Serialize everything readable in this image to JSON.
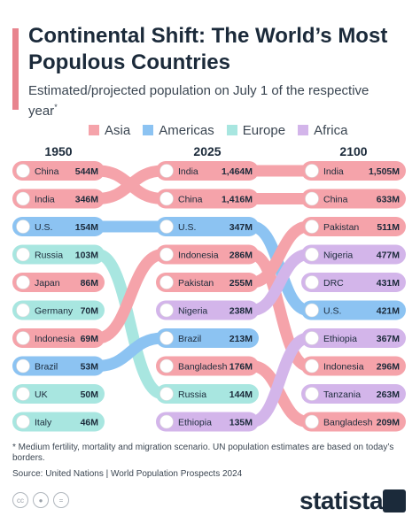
{
  "header": {
    "title": "Continental Shift: The World’s Most Populous Countries",
    "subtitle": "Estimated/projected population on July 1 of the respective year",
    "subtitle_mark": "*"
  },
  "legend": [
    {
      "label": "Asia",
      "color": "#f5a3aa"
    },
    {
      "label": "Americas",
      "color": "#8cc3f2"
    },
    {
      "label": "Europe",
      "color": "#a8e6e0"
    },
    {
      "label": "Africa",
      "color": "#d3b5ea"
    }
  ],
  "chart_data": {
    "type": "bump",
    "years": [
      "1950",
      "2025",
      "2100"
    ],
    "unit": "M",
    "columns": [
      [
        {
          "country": "China",
          "value": "544M",
          "region": "Asia"
        },
        {
          "country": "India",
          "value": "346M",
          "region": "Asia"
        },
        {
          "country": "U.S.",
          "value": "154M",
          "region": "Americas"
        },
        {
          "country": "Russia",
          "value": "103M",
          "region": "Europe"
        },
        {
          "country": "Japan",
          "value": "86M",
          "region": "Asia"
        },
        {
          "country": "Germany",
          "value": "70M",
          "region": "Europe"
        },
        {
          "country": "Indonesia",
          "value": "69M",
          "region": "Asia"
        },
        {
          "country": "Brazil",
          "value": "53M",
          "region": "Americas"
        },
        {
          "country": "UK",
          "value": "50M",
          "region": "Europe"
        },
        {
          "country": "Italy",
          "value": "46M",
          "region": "Europe"
        }
      ],
      [
        {
          "country": "India",
          "value": "1,464M",
          "region": "Asia"
        },
        {
          "country": "China",
          "value": "1,416M",
          "region": "Asia"
        },
        {
          "country": "U.S.",
          "value": "347M",
          "region": "Americas"
        },
        {
          "country": "Indonesia",
          "value": "286M",
          "region": "Asia"
        },
        {
          "country": "Pakistan",
          "value": "255M",
          "region": "Asia"
        },
        {
          "country": "Nigeria",
          "value": "238M",
          "region": "Africa"
        },
        {
          "country": "Brazil",
          "value": "213M",
          "region": "Americas"
        },
        {
          "country": "Bangladesh",
          "value": "176M",
          "region": "Asia"
        },
        {
          "country": "Russia",
          "value": "144M",
          "region": "Europe"
        },
        {
          "country": "Ethiopia",
          "value": "135M",
          "region": "Africa"
        }
      ],
      [
        {
          "country": "India",
          "value": "1,505M",
          "region": "Asia"
        },
        {
          "country": "China",
          "value": "633M",
          "region": "Asia"
        },
        {
          "country": "Pakistan",
          "value": "511M",
          "region": "Asia"
        },
        {
          "country": "Nigeria",
          "value": "477M",
          "region": "Africa"
        },
        {
          "country": "DRC",
          "value": "431M",
          "region": "Africa"
        },
        {
          "country": "U.S.",
          "value": "421M",
          "region": "Americas"
        },
        {
          "country": "Ethiopia",
          "value": "367M",
          "region": "Africa"
        },
        {
          "country": "Indonesia",
          "value": "296M",
          "region": "Asia"
        },
        {
          "country": "Tanzania",
          "value": "263M",
          "region": "Africa"
        },
        {
          "country": "Bangladesh",
          "value": "209M",
          "region": "Asia"
        }
      ]
    ]
  },
  "region_colors": {
    "Asia": "#f5a3aa",
    "Americas": "#8cc3f2",
    "Europe": "#a8e6e0",
    "Africa": "#d3b5ea"
  },
  "footer": {
    "footnote": "* Medium fertility, mortality and migration scenario. UN population estimates are based on today’s borders.",
    "source": "Source: United Nations | World Population Prospects 2024",
    "brand": "statista",
    "icons": [
      "cc-icon",
      "attribution-icon",
      "no-derivatives-icon"
    ]
  }
}
